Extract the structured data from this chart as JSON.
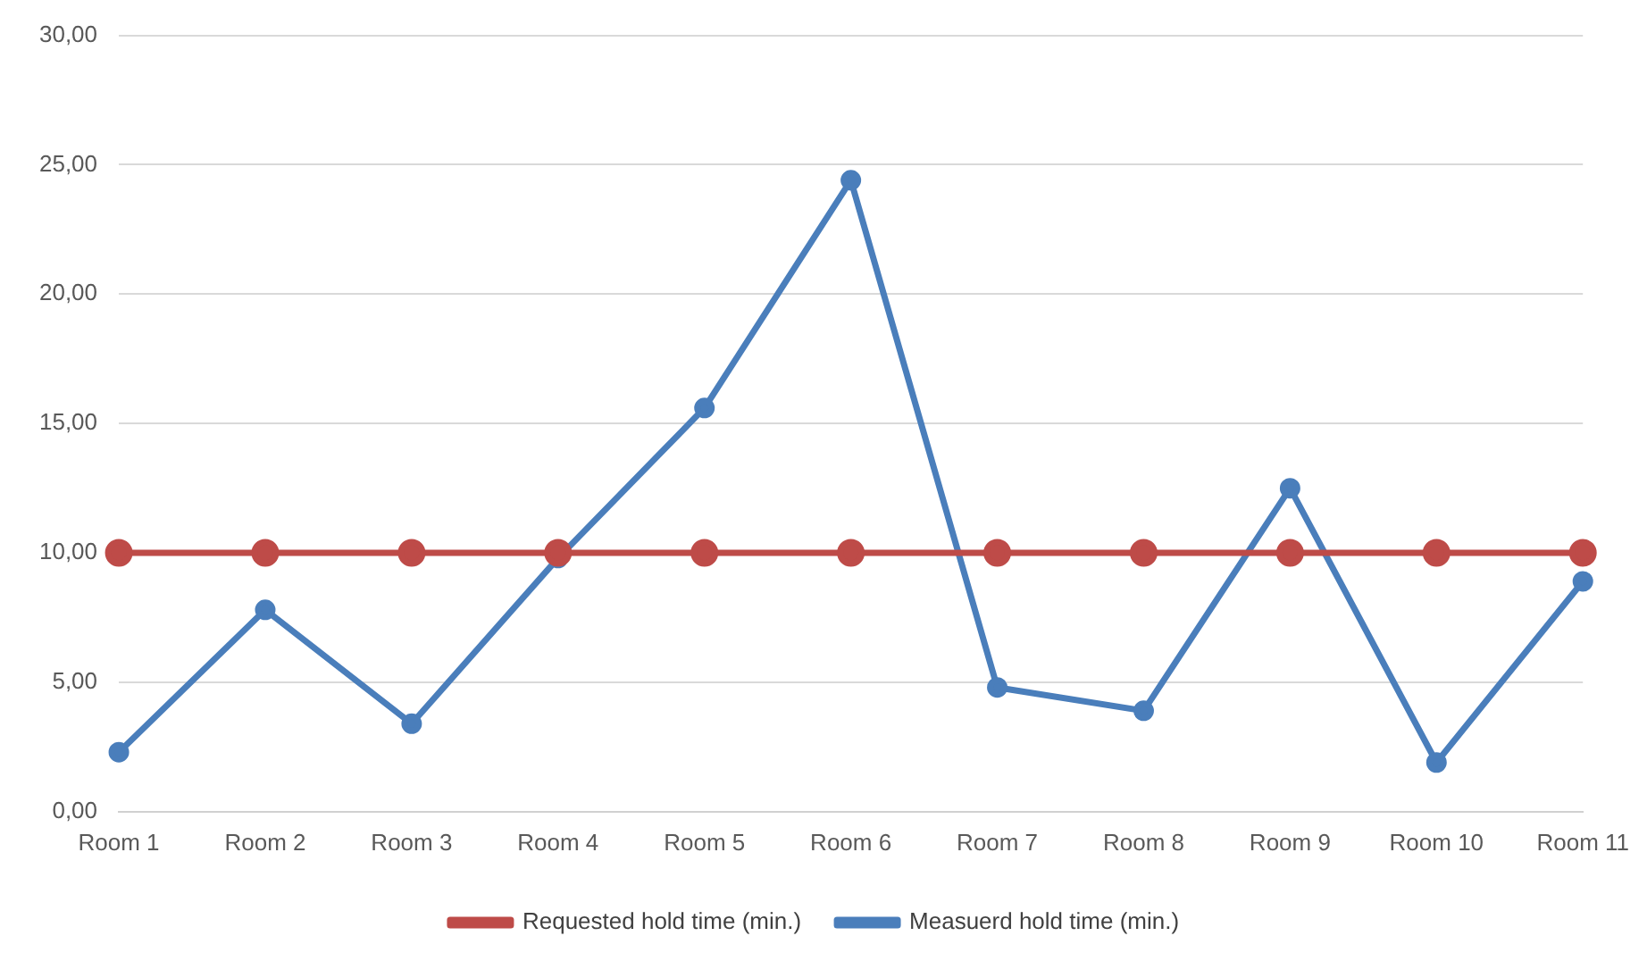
{
  "chart_data": {
    "type": "line",
    "categories": [
      "Room 1",
      "Room 2",
      "Room 3",
      "Room 4",
      "Room 5",
      "Room 6",
      "Room 7",
      "Room 8",
      "Room 9",
      "Room 10",
      "Room 11"
    ],
    "series": [
      {
        "name": "Measuerd hold time (min.)",
        "color": "#4a7ebb",
        "values": [
          2.3,
          7.8,
          3.4,
          9.8,
          15.6,
          24.4,
          4.8,
          3.9,
          12.5,
          1.9,
          8.9
        ]
      },
      {
        "name": "Requested hold time (min.)",
        "color": "#be4b48",
        "values": [
          10,
          10,
          10,
          10,
          10,
          10,
          10,
          10,
          10,
          10,
          10
        ]
      }
    ],
    "ylim": [
      0,
      30
    ],
    "yticks": [
      {
        "value": 0,
        "label": "0,00"
      },
      {
        "value": 5,
        "label": "5,00"
      },
      {
        "value": 10,
        "label": "10,00"
      },
      {
        "value": 15,
        "label": "15,00"
      },
      {
        "value": 20,
        "label": "20,00"
      },
      {
        "value": 25,
        "label": "25,00"
      },
      {
        "value": 30,
        "label": "30,00"
      }
    ],
    "grid": "y",
    "legend": "bottom",
    "marker": "circle",
    "line_style": "solid"
  }
}
